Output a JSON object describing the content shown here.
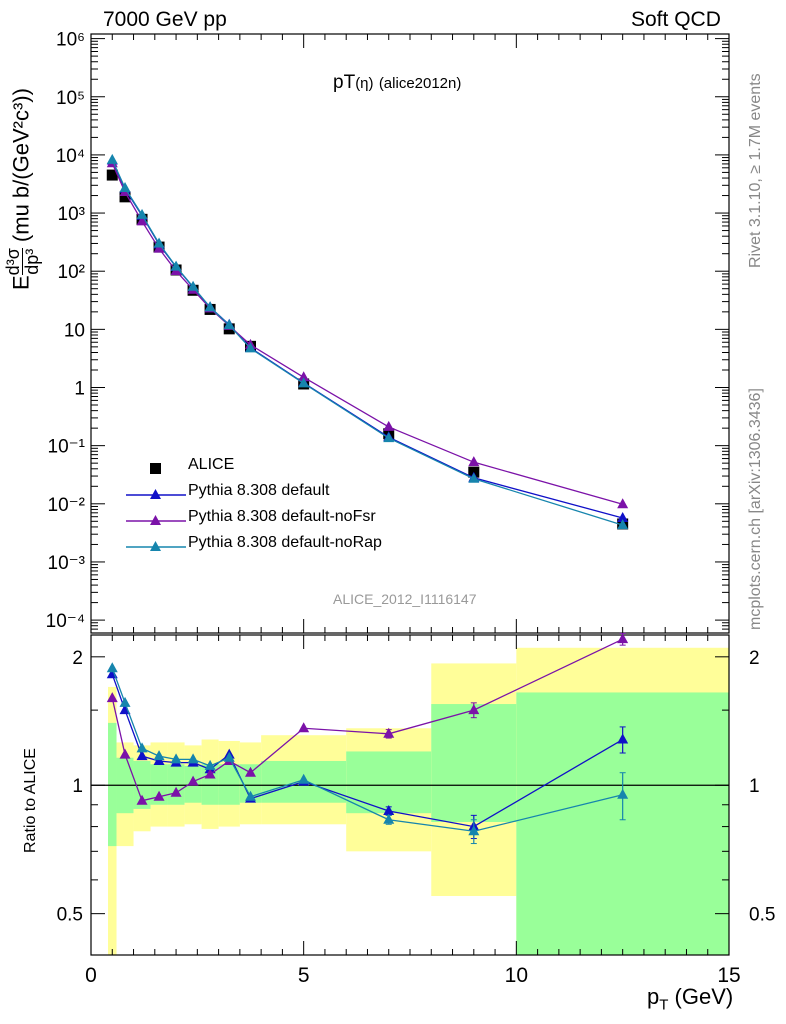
{
  "header": {
    "left": "7000 GeV pp",
    "right": "Soft QCD"
  },
  "side_labels": {
    "rivet": "Rivet 3.1.10, ≥ 1.7M events",
    "mcplots": "mcplots.cern.ch [arXiv:1306.3436]"
  },
  "plot_title": {
    "main": "pT",
    "paren": "(η)",
    "id": "(alice2012n)"
  },
  "analysis_name": "ALICE_2012_I1116147",
  "axes": {
    "y_label_E": "E",
    "y_label_num": "d³σ",
    "y_label_den": "dp³",
    "y_label_units": "(mu b/(GeV²c³))",
    "x_label_main": "p",
    "x_label_sub": "T",
    "x_label_units": "(GeV)",
    "ratio_label": "Ratio to ALICE"
  },
  "colors": {
    "data": "#000000",
    "default": "#1010c8",
    "noFsr": "#7b12a8",
    "noRap": "#1685ad",
    "band_yellow": "#fffe99",
    "band_green": "#99ff99"
  },
  "chart_data": {
    "type": "scatter",
    "xlim": [
      0,
      15
    ],
    "main_ylim": [
      6e-05,
      1200000
    ],
    "main_yscale": "log",
    "main_yticks": [
      "10⁻⁴",
      "10⁻³",
      "10⁻²",
      "10⁻¹",
      "1",
      "10",
      "10²",
      "10³",
      "10⁴",
      "10⁵",
      "10⁶"
    ],
    "xticks": [
      "0",
      "5",
      "10",
      "15"
    ],
    "ratio_ylim": [
      0.4,
      2.25
    ],
    "ratio_yscale": "log",
    "ratio_yticks": [
      "0.5",
      "1",
      "2"
    ],
    "x": [
      0.5,
      0.8,
      1.2,
      1.6,
      2.0,
      2.4,
      2.8,
      3.25,
      3.75,
      5.0,
      7.0,
      9.0,
      12.5
    ],
    "x_edges": [
      0.4,
      0.6,
      1.0,
      1.4,
      1.8,
      2.2,
      2.6,
      3.0,
      3.5,
      4.0,
      6.0,
      8.0,
      10.0,
      15.0
    ],
    "band_green": {
      "lo": [
        0.72,
        0.86,
        0.88,
        0.9,
        0.9,
        0.91,
        0.9,
        0.9,
        0.91,
        0.91,
        0.86,
        0.82,
        0.37
      ],
      "hi": [
        1.4,
        1.16,
        1.14,
        1.12,
        1.12,
        1.11,
        1.12,
        1.12,
        1.12,
        1.14,
        1.2,
        1.55,
        1.65
      ]
    },
    "band_yellow": {
      "lo": [
        0.38,
        0.72,
        0.78,
        0.8,
        0.8,
        0.81,
        0.79,
        0.8,
        0.81,
        0.81,
        0.7,
        0.55,
        0.37
      ],
      "hi": [
        1.7,
        1.26,
        1.24,
        1.26,
        1.26,
        1.24,
        1.28,
        1.27,
        1.26,
        1.31,
        1.36,
        1.93,
        2.1
      ]
    },
    "series": [
      {
        "name": "ALICE",
        "marker": "square",
        "color": "#000000",
        "values": [
          4500,
          1900,
          780,
          260,
          105,
          47,
          22,
          10.2,
          5.1,
          1.15,
          0.16,
          0.035,
          0.0045
        ]
      },
      {
        "name": "Pythia 8.308 default",
        "marker": "triangle",
        "color": "#1010c8",
        "values": [
          8000,
          2600,
          900,
          290,
          118,
          53,
          24,
          12,
          4.8,
          1.2,
          0.14,
          0.028,
          0.0057
        ],
        "ratio": [
          1.82,
          1.5,
          1.17,
          1.14,
          1.13,
          1.13,
          1.09,
          1.18,
          0.93,
          1.02,
          0.87,
          0.8,
          1.28
        ],
        "ratio_err": [
          0,
          0,
          0,
          0,
          0,
          0,
          0,
          0,
          0,
          0,
          0.02,
          0.05,
          0.09
        ]
      },
      {
        "name": "Pythia 8.308 default-noFsr",
        "marker": "triangle",
        "color": "#7b12a8",
        "values": [
          7200,
          2300,
          720,
          245,
          101,
          48,
          23,
          11.5,
          5.4,
          1.5,
          0.21,
          0.052,
          0.0098
        ],
        "ratio": [
          1.6,
          1.18,
          0.92,
          0.94,
          0.96,
          1.02,
          1.06,
          1.14,
          1.07,
          1.36,
          1.32,
          1.5,
          2.2
        ],
        "ratio_err": [
          0,
          0,
          0,
          0,
          0,
          0,
          0,
          0,
          0,
          0,
          0.03,
          0.06,
          0.07
        ]
      },
      {
        "name": "Pythia 8.308 default-noRap",
        "marker": "triangle",
        "color": "#1685ad",
        "values": [
          8200,
          2700,
          930,
          300,
          120,
          54,
          24,
          11.8,
          4.7,
          1.18,
          0.135,
          0.027,
          0.0043
        ],
        "ratio": [
          1.88,
          1.56,
          1.22,
          1.17,
          1.15,
          1.15,
          1.11,
          1.16,
          0.94,
          1.03,
          0.83,
          0.78,
          0.95
        ],
        "ratio_err": [
          0,
          0,
          0,
          0,
          0,
          0,
          0,
          0,
          0,
          0,
          0.02,
          0.05,
          0.12
        ]
      }
    ]
  }
}
